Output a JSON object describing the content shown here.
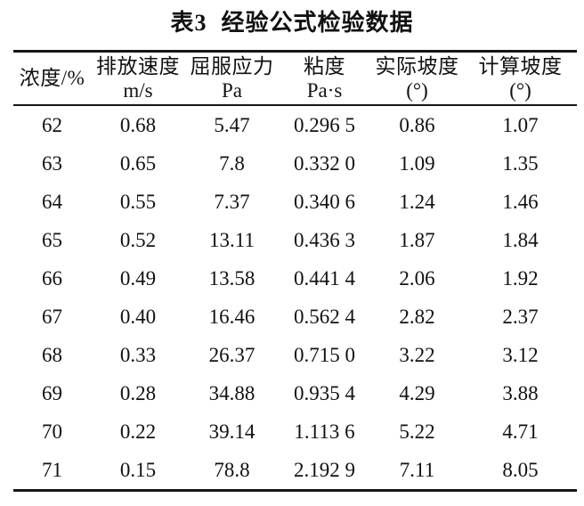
{
  "page": {
    "background_color": "#ffffff",
    "text_color": "#111111",
    "rule_color": "#161616"
  },
  "title": {
    "label": "表3",
    "text": "经验公式检验数据"
  },
  "table": {
    "columns": [
      {
        "name": "浓度/%",
        "unit": ""
      },
      {
        "name": "排放速度",
        "unit": "m/s"
      },
      {
        "name": "屈服应力",
        "unit": "Pa"
      },
      {
        "name": "粘度",
        "unit": "Pa·s"
      },
      {
        "name": "实际坡度",
        "unit": "(°)"
      },
      {
        "name": "计算坡度",
        "unit": "(°)"
      }
    ],
    "rows": [
      [
        "62",
        "0.68",
        "5.47",
        "0.296 5",
        "0.86",
        "1.07"
      ],
      [
        "63",
        "0.65",
        "7.8",
        "0.332 0",
        "1.09",
        "1.35"
      ],
      [
        "64",
        "0.55",
        "7.37",
        "0.340 6",
        "1.24",
        "1.46"
      ],
      [
        "65",
        "0.52",
        "13.11",
        "0.436 3",
        "1.87",
        "1.84"
      ],
      [
        "66",
        "0.49",
        "13.58",
        "0.441 4",
        "2.06",
        "1.92"
      ],
      [
        "67",
        "0.40",
        "16.46",
        "0.562 4",
        "2.82",
        "2.37"
      ],
      [
        "68",
        "0.33",
        "26.37",
        "0.715 0",
        "3.22",
        "3.12"
      ],
      [
        "69",
        "0.28",
        "34.88",
        "0.935 4",
        "4.29",
        "3.88"
      ],
      [
        "70",
        "0.22",
        "39.14",
        "1.113 6",
        "5.22",
        "4.71"
      ],
      [
        "71",
        "0.15",
        "78.8",
        "2.192 9",
        "7.11",
        "8.05"
      ]
    ]
  }
}
